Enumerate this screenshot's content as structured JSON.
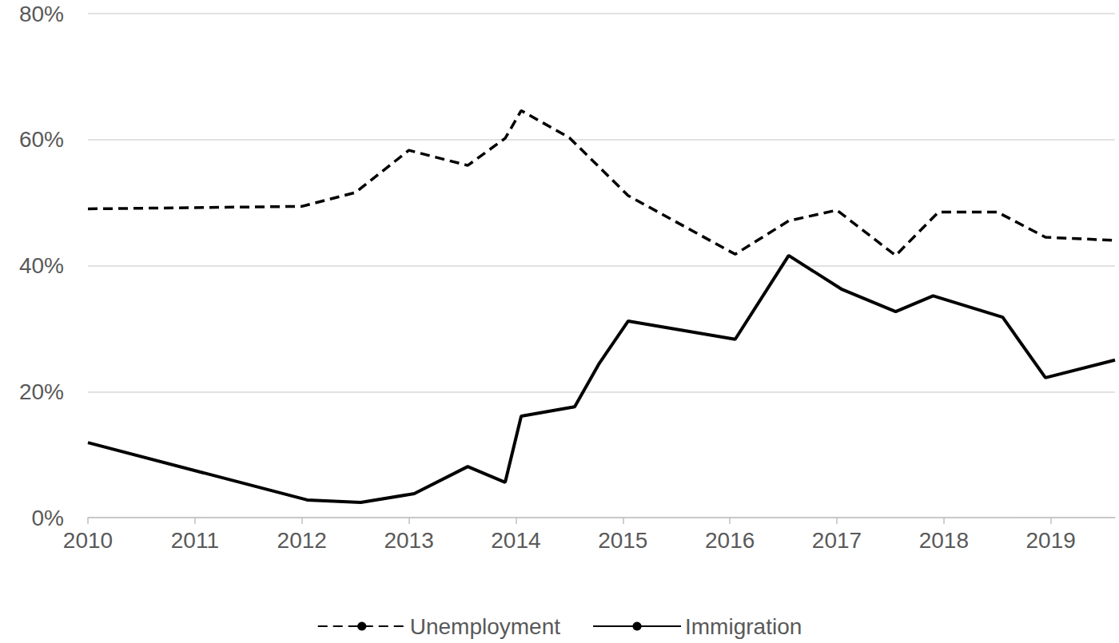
{
  "chart_data": {
    "type": "line",
    "xlim": [
      2010,
      2019.6
    ],
    "xticks": [
      2010,
      2011,
      2012,
      2013,
      2014,
      2015,
      2016,
      2017,
      2018,
      2019
    ],
    "ylim": [
      0,
      80
    ],
    "yticks": [
      {
        "value": 0,
        "label": "0%"
      },
      {
        "value": 20,
        "label": "20%"
      },
      {
        "value": 40,
        "label": "40%"
      },
      {
        "value": 60,
        "label": "60%"
      },
      {
        "value": 80,
        "label": "80%"
      }
    ],
    "grid": true,
    "legend": "bottom",
    "series": [
      {
        "name": "Unemployment",
        "color": "#000000",
        "line_style": "dashed",
        "marker": "none",
        "x": [
          2010.0,
          2012.0,
          2012.5,
          2013.0,
          2013.55,
          2013.9,
          2014.05,
          2014.5,
          2015.05,
          2016.05,
          2016.55,
          2017.0,
          2017.55,
          2017.95,
          2018.5,
          2018.95,
          2019.6
        ],
        "values": [
          49,
          49.4,
          51.6,
          58.3,
          55.9,
          60.2,
          64.6,
          60.3,
          51.1,
          41.8,
          47.1,
          48.8,
          41.6,
          48.5,
          48.5,
          44.5,
          44
        ]
      },
      {
        "name": "Immigration",
        "color": "#000000",
        "line_style": "solid",
        "marker": "none",
        "x": [
          2010.0,
          2012.05,
          2012.55,
          2013.05,
          2013.55,
          2013.9,
          2014.05,
          2014.55,
          2014.78,
          2015.05,
          2016.05,
          2016.55,
          2017.05,
          2017.55,
          2017.9,
          2018.55,
          2018.95,
          2019.6
        ],
        "values": [
          11.9,
          2.8,
          2.4,
          3.8,
          8.1,
          5.6,
          16.1,
          17.6,
          24.5,
          31.2,
          28.3,
          41.6,
          36.2,
          32.7,
          35.2,
          31.8,
          22.2,
          25.0
        ]
      }
    ]
  }
}
